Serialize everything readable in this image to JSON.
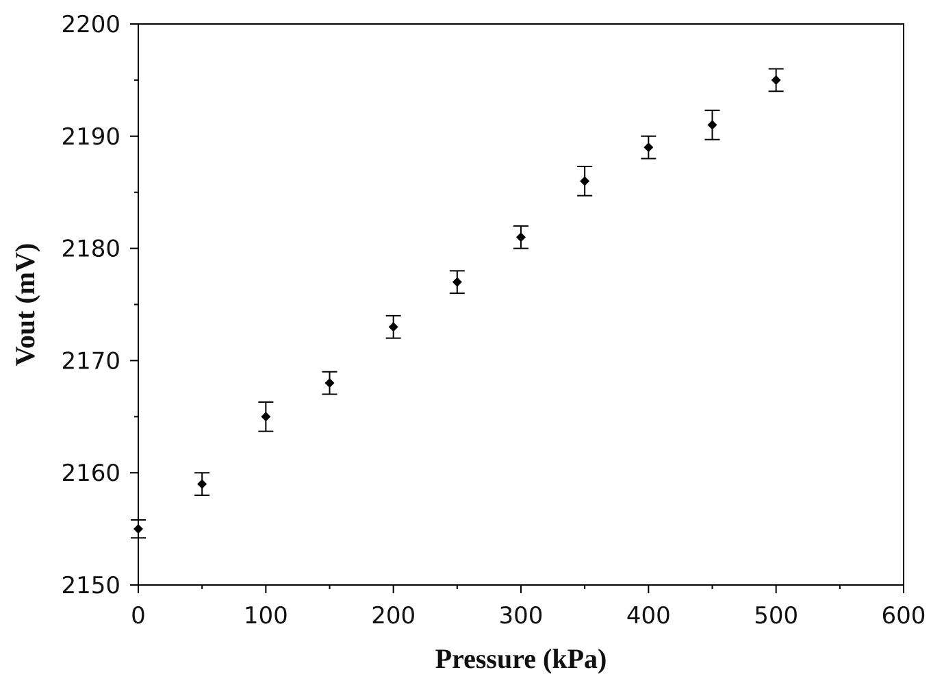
{
  "chart_data": {
    "type": "scatter",
    "title": "",
    "xlabel": "Pressure (kPa)",
    "ylabel": "Vout (mV)",
    "xlim": [
      0,
      600
    ],
    "ylim": [
      2150,
      2200
    ],
    "x_ticks": [
      0,
      100,
      200,
      300,
      400,
      500,
      600
    ],
    "y_ticks": [
      2150,
      2160,
      2170,
      2180,
      2190,
      2200
    ],
    "x_minor_step": 50,
    "y_minor_step": 5,
    "grid": false,
    "legend": "none",
    "marker": "diamond",
    "error_bars": true,
    "colors": {
      "marker": "#000000",
      "axis": "#000000",
      "background": "#ffffff"
    },
    "series": [
      {
        "x": [
          0,
          50,
          100,
          150,
          200,
          250,
          300,
          350,
          400,
          450,
          500
        ],
        "y": [
          2155,
          2159,
          2165,
          2168,
          2173,
          2177,
          2181,
          2186,
          2189,
          2191,
          2195
        ],
        "yerr": [
          0.8,
          1.0,
          1.3,
          1.0,
          1.0,
          1.0,
          1.0,
          1.3,
          1.0,
          1.3,
          1.0
        ]
      }
    ]
  }
}
